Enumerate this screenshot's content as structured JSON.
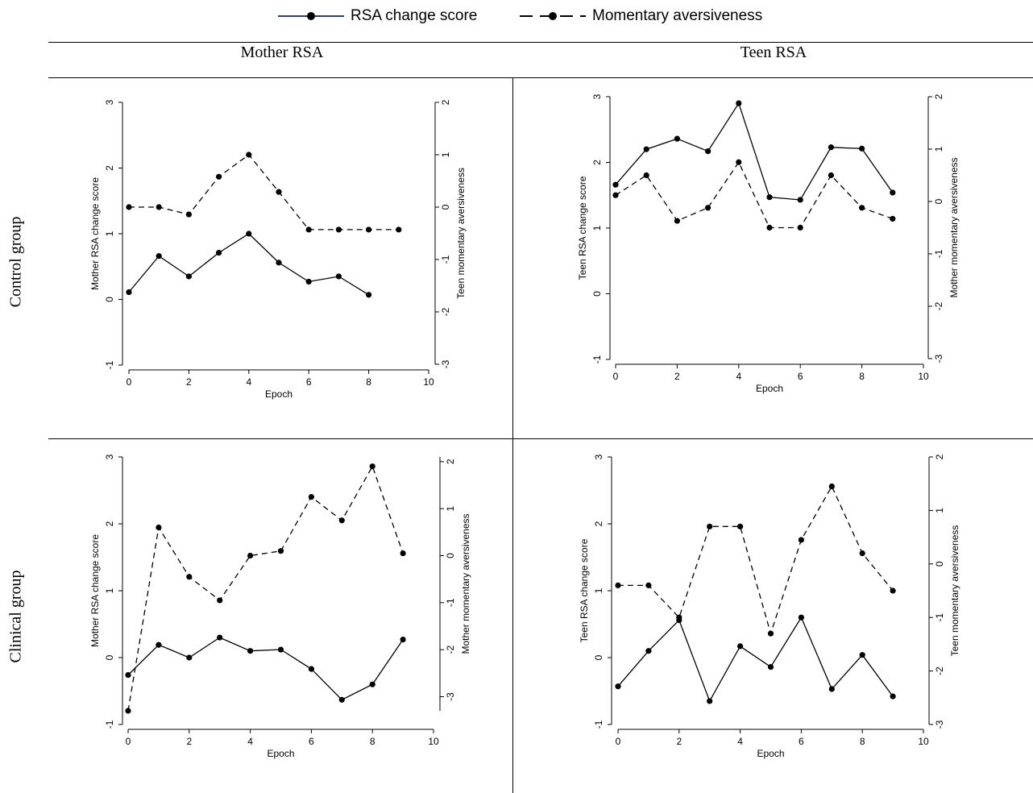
{
  "legend": {
    "rsa_label": "RSA change score",
    "aversive_label": "Momentary aversiveness"
  },
  "columns": [
    "Mother RSA",
    "Teen RSA"
  ],
  "rows": [
    "Control group",
    "Clinical group"
  ],
  "chart_data": [
    {
      "type": "line",
      "panel": "control-mother",
      "xlabel": "Epoch",
      "ylabel": "Mother RSA change score",
      "y2label": "Teen momentary aversiveness",
      "xlim": [
        0,
        10
      ],
      "xticks": [
        0,
        2,
        4,
        6,
        8,
        10
      ],
      "ylim": [
        -1,
        3
      ],
      "yticks": [
        -1,
        0,
        1,
        2,
        3
      ],
      "y2lim": [
        -3,
        2
      ],
      "y2ticks": [
        -3,
        -2,
        -1,
        0,
        1,
        2
      ],
      "series": [
        {
          "name": "RSA change score",
          "axis": "left",
          "dash": false,
          "x": [
            0,
            1,
            2,
            3,
            4,
            5,
            6,
            7,
            8
          ],
          "y": [
            0.11,
            0.66,
            0.35,
            0.71,
            1.0,
            0.56,
            0.27,
            0.35,
            0.07
          ]
        },
        {
          "name": "Momentary aversiveness",
          "axis": "right",
          "dash": true,
          "x": [
            0,
            1,
            2,
            3,
            4,
            5,
            6,
            7,
            8,
            9
          ],
          "y": [
            0.0,
            0.0,
            -0.14,
            0.58,
            1.0,
            0.29,
            -0.43,
            -0.43,
            -0.43,
            -0.43
          ]
        }
      ]
    },
    {
      "type": "line",
      "panel": "control-teen",
      "xlabel": "Epoch",
      "ylabel": "Teen RSA change score",
      "y2label": "Mother momentary aversiveness",
      "xlim": [
        0,
        10
      ],
      "xticks": [
        0,
        2,
        4,
        6,
        8,
        10
      ],
      "ylim": [
        -1,
        3
      ],
      "yticks": [
        -1,
        0,
        1,
        2,
        3
      ],
      "y2lim": [
        -3,
        2
      ],
      "y2ticks": [
        -3,
        -2,
        -1,
        0,
        1,
        2
      ],
      "series": [
        {
          "name": "RSA change score",
          "axis": "left",
          "dash": false,
          "x": [
            0,
            1,
            2,
            3,
            4,
            5,
            6,
            7,
            8,
            9
          ],
          "y": [
            1.66,
            2.2,
            2.36,
            2.17,
            2.9,
            1.47,
            1.43,
            2.23,
            2.21,
            1.54
          ]
        },
        {
          "name": "Momentary aversiveness",
          "axis": "right",
          "dash": true,
          "x": [
            0,
            1,
            2,
            3,
            4,
            5,
            6,
            7,
            8,
            9
          ],
          "y": [
            0.12,
            0.5,
            -0.37,
            -0.12,
            0.75,
            -0.5,
            -0.5,
            0.5,
            -0.12,
            -0.33
          ]
        }
      ]
    },
    {
      "type": "line",
      "panel": "clinical-mother",
      "xlabel": "Epoch",
      "ylabel": "Mother RSA change score",
      "y2label": "Mother momentary aversiveness",
      "xlim": [
        0,
        10
      ],
      "xticks": [
        0,
        2,
        4,
        6,
        8,
        10
      ],
      "ylim": [
        -1,
        3
      ],
      "yticks": [
        -1,
        0,
        1,
        2,
        3
      ],
      "y2lim": [
        -3.3,
        2.1
      ],
      "y2ticks": [
        -3,
        -2,
        -1,
        0,
        1,
        2
      ],
      "series": [
        {
          "name": "RSA change score",
          "axis": "left",
          "dash": false,
          "x": [
            0,
            1,
            2,
            3,
            4,
            5,
            6,
            7,
            8,
            9
          ],
          "y": [
            -0.26,
            0.19,
            0.0,
            0.3,
            0.1,
            0.12,
            -0.17,
            -0.63,
            -0.4,
            0.27
          ]
        },
        {
          "name": "Momentary aversiveness",
          "axis": "right",
          "dash": true,
          "x": [
            0,
            1,
            2,
            3,
            4,
            5,
            6,
            7,
            8,
            9
          ],
          "y": [
            -3.3,
            0.6,
            -0.45,
            -0.95,
            0.0,
            0.1,
            1.25,
            0.75,
            1.9,
            0.05
          ]
        }
      ]
    },
    {
      "type": "line",
      "panel": "clinical-teen",
      "xlabel": "Epoch",
      "ylabel": "Teen RSA change score",
      "y2label": "Teen momentary aversiveness",
      "xlim": [
        0,
        10
      ],
      "xticks": [
        0,
        2,
        4,
        6,
        8,
        10
      ],
      "ylim": [
        -1,
        3
      ],
      "yticks": [
        -1,
        0,
        1,
        2,
        3
      ],
      "y2lim": [
        -3,
        2
      ],
      "y2ticks": [
        -3,
        -2,
        -1,
        0,
        1,
        2
      ],
      "series": [
        {
          "name": "RSA change score",
          "axis": "left",
          "dash": false,
          "x": [
            0,
            1,
            2,
            3,
            4,
            5,
            6,
            7,
            8,
            9
          ],
          "y": [
            -0.43,
            0.1,
            0.56,
            -0.65,
            0.17,
            -0.14,
            0.6,
            -0.47,
            0.04,
            -0.58
          ]
        },
        {
          "name": "Momentary aversiveness",
          "axis": "right",
          "dash": true,
          "x": [
            0,
            1,
            2,
            3,
            4,
            5,
            6,
            7,
            8,
            9
          ],
          "y": [
            -0.4,
            -0.4,
            -1.0,
            0.7,
            0.7,
            -1.3,
            0.45,
            1.45,
            0.2,
            -0.5
          ]
        }
      ]
    }
  ]
}
